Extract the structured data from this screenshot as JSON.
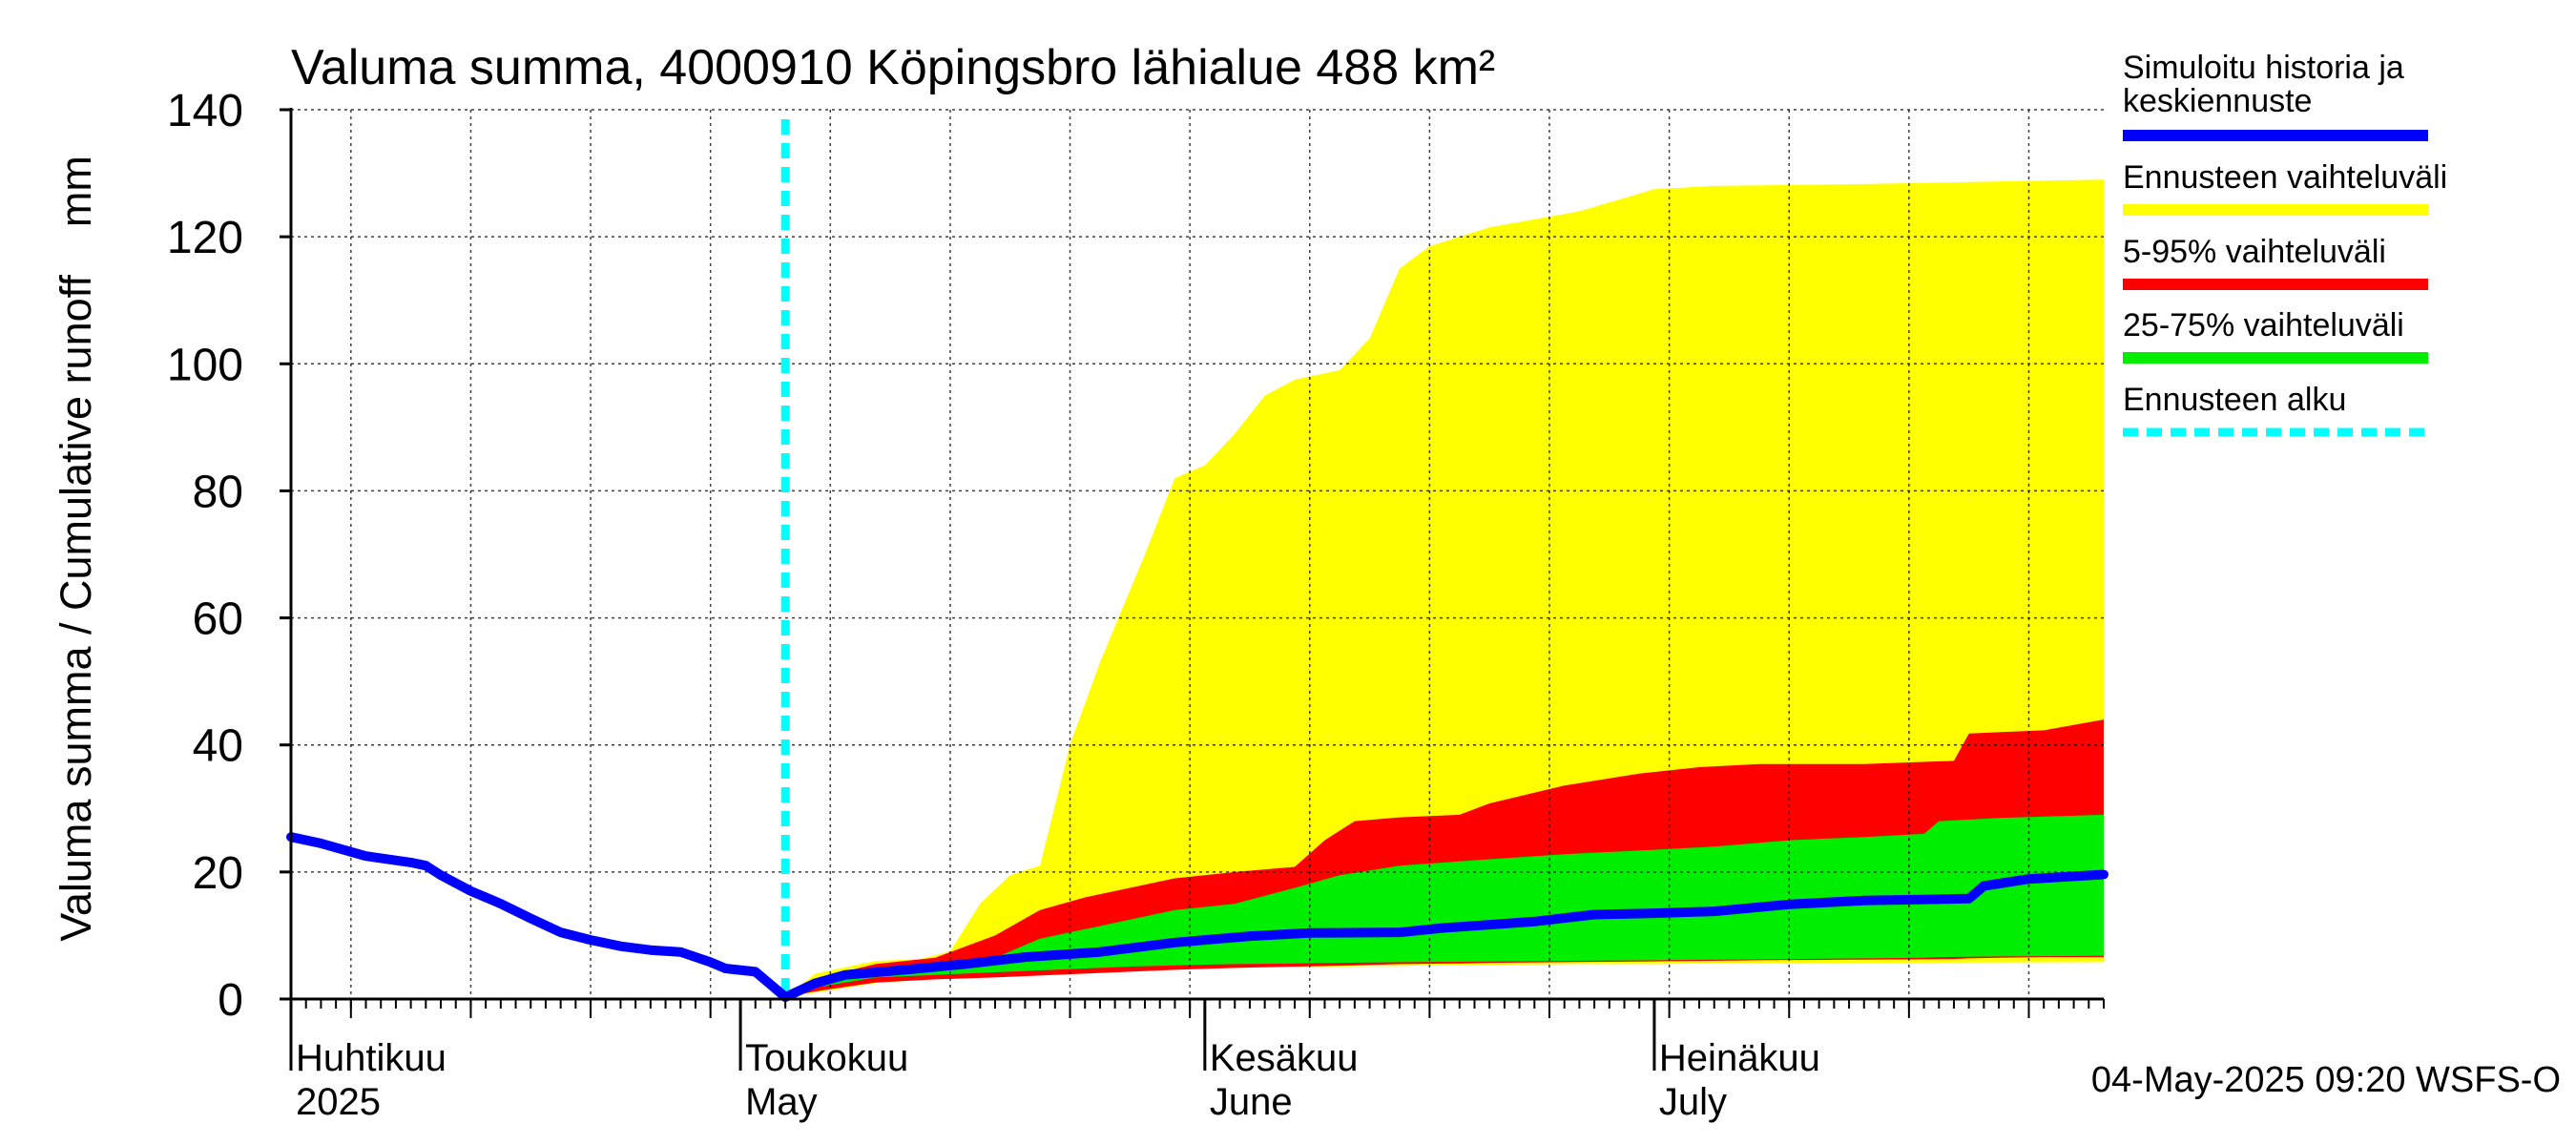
{
  "chart_data": {
    "type": "area",
    "title": "Valuma summa, 4000910 Köpingsbro lähialue 488 km²",
    "ylabel": "Valuma summa / Cumulative runoff    mm",
    "ylim": [
      0,
      140
    ],
    "yticks": [
      0,
      20,
      40,
      60,
      80,
      100,
      120,
      140
    ],
    "xlim": [
      "2025-04-01",
      "2025-07-31"
    ],
    "grid": true,
    "month_labels": [
      {
        "date": "2025-04-01",
        "fi": "Huhtikuu",
        "en": "2025"
      },
      {
        "date": "2025-05-01",
        "fi": "Toukokuu",
        "en": "May"
      },
      {
        "date": "2025-06-01",
        "fi": "Kesäkuu",
        "en": "June"
      },
      {
        "date": "2025-07-01",
        "fi": "Heinäkuu",
        "en": "July"
      }
    ],
    "forecast_start": "2025-05-04",
    "footer": "04-May-2025 09:20 WSFS-O",
    "colors": {
      "history": "#0000ff",
      "range_full": "#ffff00",
      "range_5_95": "#ff0000",
      "range_25_75": "#00ee00",
      "forecast_start": "#00ffff"
    },
    "legend": [
      {
        "label": "Simuloitu historia ja keskiennuste",
        "color": "#0000ff",
        "style": "solid"
      },
      {
        "label": "Ennusteen vaihteluväli",
        "color": "#ffff00",
        "style": "solid"
      },
      {
        "label": "5-95% vaihteluväli",
        "color": "#ff0000",
        "style": "solid"
      },
      {
        "label": "25-75% vaihteluväli",
        "color": "#00ee00",
        "style": "solid"
      },
      {
        "label": "Ennusteen alku",
        "color": "#00ffff",
        "style": "dashed"
      }
    ],
    "history": {
      "x": [
        "2025-04-01",
        "2025-04-03",
        "2025-04-06",
        "2025-04-09",
        "2025-04-10",
        "2025-04-11",
        "2025-04-13",
        "2025-04-15",
        "2025-04-17",
        "2025-04-19",
        "2025-04-21",
        "2025-04-23",
        "2025-04-25",
        "2025-04-27",
        "2025-04-29",
        "2025-04-30",
        "2025-05-02",
        "2025-05-04"
      ],
      "y": [
        25.5,
        24.5,
        22.5,
        21.5,
        21.0,
        19.5,
        17.0,
        15.0,
        12.7,
        10.5,
        9.3,
        8.3,
        7.7,
        7.4,
        5.8,
        4.8,
        4.3,
        0.3
      ]
    },
    "median": {
      "x": [
        "2025-05-04",
        "2025-05-06",
        "2025-05-08",
        "2025-05-12",
        "2025-05-16",
        "2025-05-20",
        "2025-05-25",
        "2025-05-30",
        "2025-06-04",
        "2025-06-08",
        "2025-06-14",
        "2025-06-17",
        "2025-06-23",
        "2025-06-27",
        "2025-07-01",
        "2025-07-05",
        "2025-07-10",
        "2025-07-15",
        "2025-07-22",
        "2025-07-23",
        "2025-07-26",
        "2025-07-31"
      ],
      "y": [
        0.3,
        2.5,
        3.8,
        4.6,
        5.5,
        6.6,
        7.4,
        8.9,
        9.9,
        10.4,
        10.5,
        11.2,
        12.2,
        13.3,
        13.5,
        13.8,
        14.9,
        15.5,
        15.8,
        17.8,
        18.9,
        19.6
      ]
    },
    "range_full": {
      "x": [
        "2025-05-04",
        "2025-05-06",
        "2025-05-10",
        "2025-05-13",
        "2025-05-15",
        "2025-05-17",
        "2025-05-19",
        "2025-05-21",
        "2025-05-23",
        "2025-05-25",
        "2025-05-28",
        "2025-05-30",
        "2025-06-01",
        "2025-06-03",
        "2025-06-05",
        "2025-06-07",
        "2025-06-10",
        "2025-06-12",
        "2025-06-14",
        "2025-06-16",
        "2025-06-20",
        "2025-06-26",
        "2025-07-01",
        "2025-07-05",
        "2025-07-15",
        "2025-07-31"
      ],
      "lo": [
        0.3,
        1.0,
        2.5,
        3.0,
        3.5,
        3.9,
        4.1,
        4.3,
        4.4,
        4.5,
        4.6,
        4.7,
        4.8,
        4.9,
        5.0,
        5.0,
        5.1,
        5.2,
        5.2,
        5.3,
        5.4,
        5.5,
        5.5,
        5.6,
        5.7,
        5.8
      ],
      "hi": [
        0.3,
        4.0,
        6.0,
        6.3,
        7.5,
        15.0,
        19.5,
        21.0,
        40.0,
        53.0,
        70.0,
        82.0,
        84.0,
        89.0,
        95.0,
        97.5,
        99.0,
        104.0,
        115.0,
        118.5,
        121.5,
        124.0,
        127.5,
        128.0,
        128.3,
        129.0
      ]
    },
    "range_5_95": {
      "x": [
        "2025-05-04",
        "2025-05-06",
        "2025-05-10",
        "2025-05-14",
        "2025-05-18",
        "2025-05-21",
        "2025-05-24",
        "2025-05-27",
        "2025-05-30",
        "2025-06-03",
        "2025-06-07",
        "2025-06-09",
        "2025-06-11",
        "2025-06-14",
        "2025-06-18",
        "2025-06-20",
        "2025-06-25",
        "2025-06-30",
        "2025-07-04",
        "2025-07-08",
        "2025-07-15",
        "2025-07-21",
        "2025-07-22",
        "2025-07-24",
        "2025-07-27",
        "2025-07-31"
      ],
      "lo": [
        0.3,
        1.2,
        2.6,
        3.1,
        3.4,
        3.7,
        4.0,
        4.3,
        4.6,
        4.9,
        5.1,
        5.2,
        5.3,
        5.5,
        5.6,
        5.7,
        5.8,
        5.9,
        6.0,
        6.1,
        6.2,
        6.3,
        6.4,
        6.5,
        6.6,
        6.6
      ],
      "hi": [
        0.3,
        3.2,
        5.5,
        6.5,
        10.0,
        14.0,
        16.0,
        17.5,
        19.0,
        20.0,
        20.8,
        25.0,
        28.0,
        28.6,
        29.0,
        30.8,
        33.6,
        35.5,
        36.5,
        37.0,
        37.0,
        37.5,
        41.8,
        42.0,
        42.3,
        44.0
      ]
    },
    "range_25_75": {
      "x": [
        "2025-05-04",
        "2025-05-06",
        "2025-05-10",
        "2025-05-14",
        "2025-05-18",
        "2025-05-21",
        "2025-05-24",
        "2025-05-27",
        "2025-05-30",
        "2025-06-03",
        "2025-06-07",
        "2025-06-10",
        "2025-06-14",
        "2025-06-20",
        "2025-06-25",
        "2025-07-01",
        "2025-07-05",
        "2025-07-10",
        "2025-07-15",
        "2025-07-19",
        "2025-07-20",
        "2025-07-24",
        "2025-07-31"
      ],
      "lo": [
        0.3,
        1.8,
        3.4,
        3.8,
        4.2,
        4.5,
        4.8,
        5.1,
        5.3,
        5.5,
        5.6,
        5.7,
        5.8,
        5.9,
        6.0,
        6.1,
        6.2,
        6.3,
        6.4,
        6.5,
        6.6,
        6.7,
        6.8
      ],
      "hi": [
        0.3,
        2.9,
        4.5,
        5.3,
        6.5,
        9.5,
        11.0,
        12.5,
        14.0,
        15.0,
        17.5,
        19.5,
        21.0,
        22.0,
        22.8,
        23.5,
        24.0,
        25.0,
        25.5,
        26.0,
        28.0,
        28.5,
        29.0
      ]
    }
  }
}
